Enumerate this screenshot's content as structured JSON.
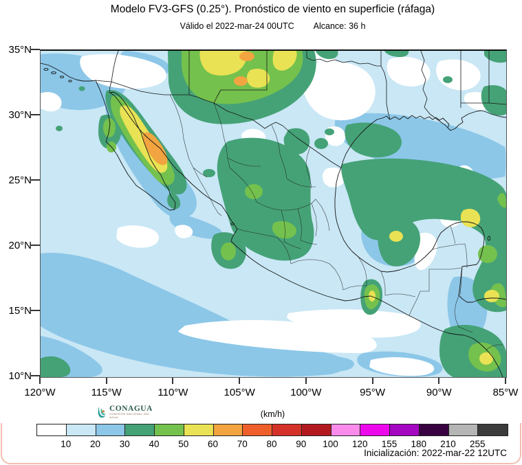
{
  "header": {
    "title": "Modelo FV3-GFS (0.25°). Pronóstico de viento en superficie (ráfaga)",
    "valid": "Válido el 2022-mar-24 00UTC",
    "reach": "Alcance: 36 h"
  },
  "axes": {
    "lat_labels": [
      "35°N",
      "30°N",
      "25°N",
      "20°N",
      "15°N",
      "10°N"
    ],
    "lon_labels": [
      "120°W",
      "115°W",
      "110°W",
      "105°W",
      "100°W",
      "95°W",
      "90°W",
      "85°W"
    ]
  },
  "legend": {
    "units": "(km/h)",
    "tick_labels": [
      "10",
      "20",
      "30",
      "40",
      "50",
      "60",
      "70",
      "80",
      "90",
      "100",
      "120",
      "155",
      "180",
      "210",
      "255"
    ],
    "colors": [
      "#ffffff",
      "#c9e7f5",
      "#8cc7e8",
      "#45a277",
      "#74c14d",
      "#e9e254",
      "#f2a440",
      "#ef5f2b",
      "#d43128",
      "#b2191f",
      "#fb8bea",
      "#ee09ed",
      "#a307bf",
      "#380140",
      "#b5b5b5",
      "#3b3b3b"
    ]
  },
  "branding": {
    "logo_text": "CONAGUA",
    "logo_subtext": "COMISIÓN NACIONAL DEL AGUA"
  },
  "footer": {
    "initialization": "Inicialización: 2022-mar-22 12UTC"
  }
}
